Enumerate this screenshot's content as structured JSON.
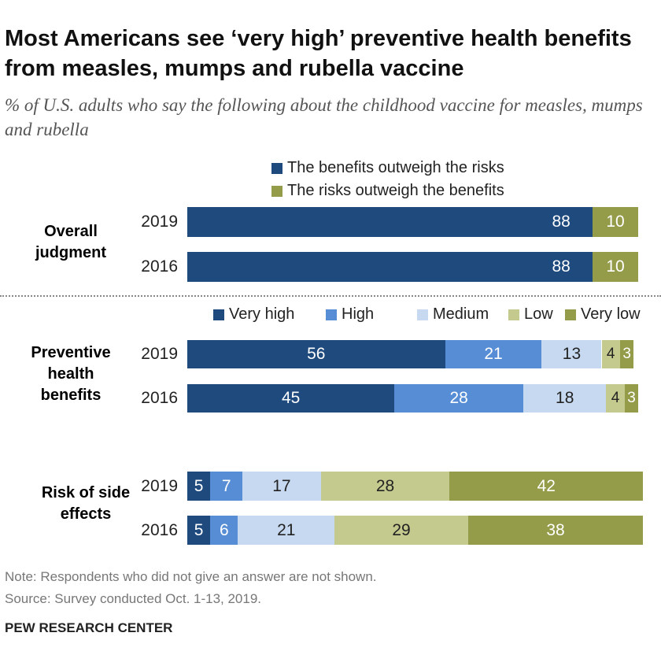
{
  "title": "Most Americans see ‘very high’ preventive health benefits from measles, mumps and rubella vaccine",
  "subtitle": "% of U.S. adults who say the following about the childhood vaccine for measles, mumps and rubella",
  "note": "Note: Respondents who did not give an answer are not shown.",
  "source": "Source: Survey conducted Oct. 1-13, 2019.",
  "brand": "PEW RESEARCH CENTER",
  "chart_data": {
    "type": "bar",
    "orientation": "horizontal-stacked",
    "panels": [
      {
        "label": "Overall judgment",
        "categories": [
          "2019",
          "2016"
        ],
        "legend": [
          "The benefits outweigh the risks",
          "The risks outweigh the benefits"
        ],
        "colors": [
          "#1f4a7e",
          "#949c4a"
        ],
        "label_colors": [
          "#fff",
          "#fff"
        ],
        "series": [
          {
            "name": "The benefits outweigh the risks",
            "values": [
              88,
              88
            ]
          },
          {
            "name": "The risks outweigh the benefits",
            "values": [
              10,
              10
            ]
          }
        ]
      },
      {
        "label": "Preventive health benefits",
        "categories": [
          "2019",
          "2016"
        ],
        "legend": [
          "Very high",
          "High",
          "Medium",
          "Low",
          "Very low"
        ],
        "colors": [
          "#1f4a7e",
          "#578dd5",
          "#c6d9f0",
          "#c4ca8e",
          "#949c4a"
        ],
        "label_colors": [
          "#fff",
          "#fff",
          "#222",
          "#222",
          "#fff"
        ],
        "series": [
          {
            "name": "Very high",
            "values": [
              56,
              45
            ]
          },
          {
            "name": "High",
            "values": [
              21,
              28
            ]
          },
          {
            "name": "Medium",
            "values": [
              13,
              18
            ]
          },
          {
            "name": "Low",
            "values": [
              4,
              4
            ]
          },
          {
            "name": "Very low",
            "values": [
              3,
              3
            ]
          }
        ]
      },
      {
        "label": "Risk of side effects",
        "categories": [
          "2019",
          "2016"
        ],
        "colors": [
          "#1f4a7e",
          "#578dd5",
          "#c6d9f0",
          "#c4ca8e",
          "#949c4a"
        ],
        "label_colors": [
          "#fff",
          "#fff",
          "#222",
          "#222",
          "#fff"
        ],
        "series": [
          {
            "name": "Very high",
            "values": [
              5,
              5
            ]
          },
          {
            "name": "High",
            "values": [
              7,
              6
            ]
          },
          {
            "name": "Medium",
            "values": [
              17,
              21
            ]
          },
          {
            "name": "Low",
            "values": [
              28,
              29
            ]
          },
          {
            "name": "Very low",
            "values": [
              42,
              38
            ]
          }
        ]
      }
    ],
    "xlim": [
      0,
      100
    ],
    "grid": false
  }
}
